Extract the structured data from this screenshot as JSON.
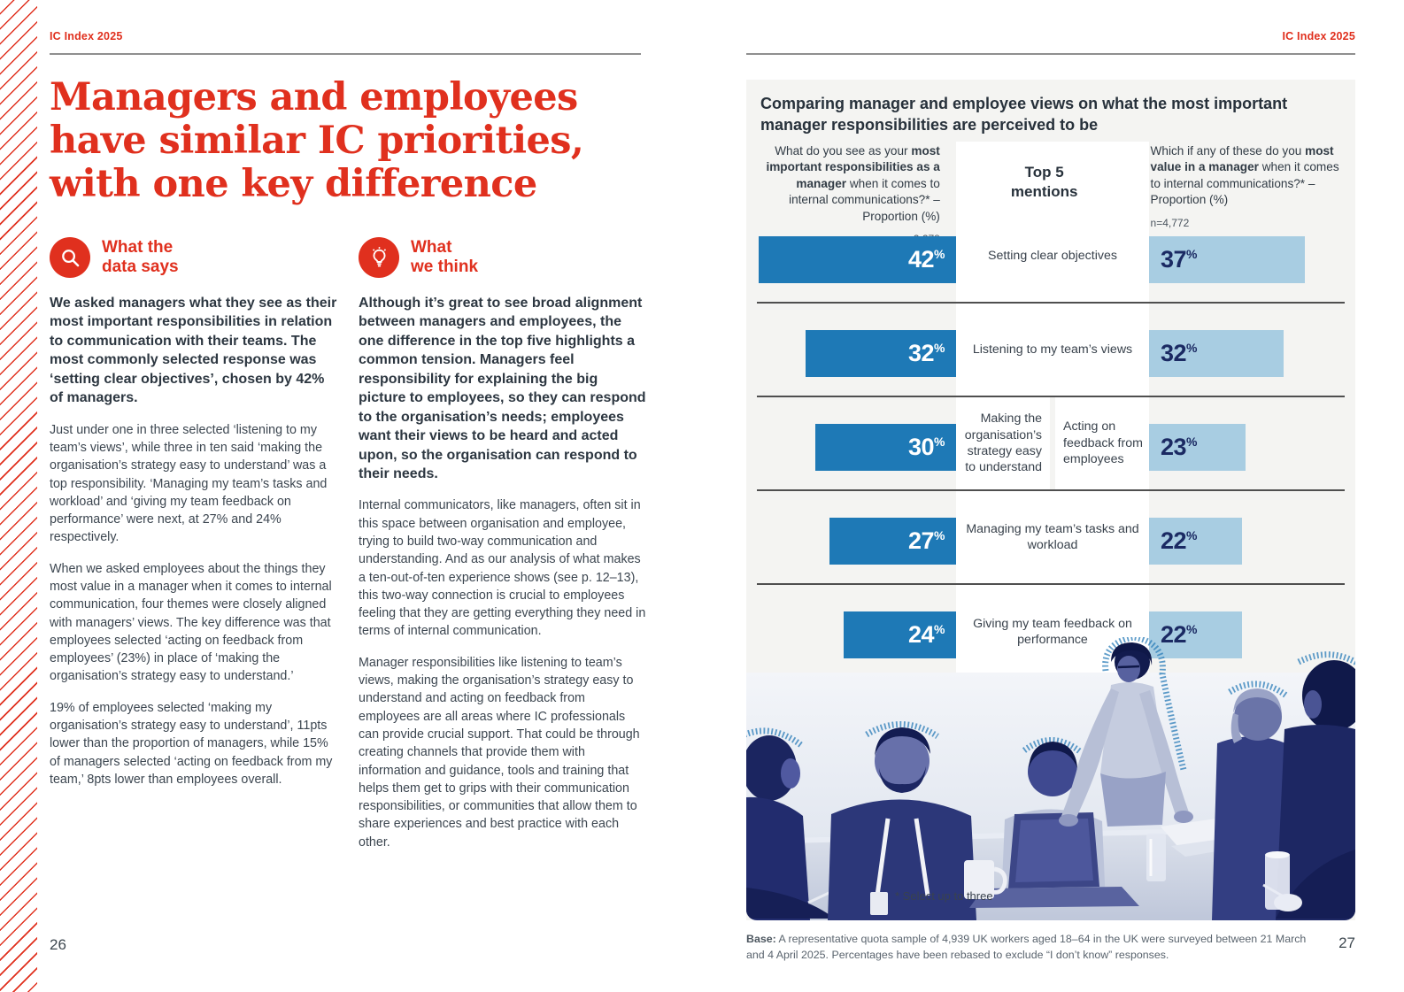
{
  "colors": {
    "accent_red": "#e0301e",
    "bar_dark_blue": "#1e79b6",
    "bar_light_blue": "#a8cde2",
    "navy_value_text": "#1b2a63",
    "panel_background": "#f4f4f2",
    "separator_gray": "#4f4f4f"
  },
  "page_left": {
    "running_header": "IC Index 2025",
    "page_number": "26",
    "title_lines": [
      "Managers and employees",
      "have similar IC priorities,",
      "with one key difference"
    ],
    "sections": [
      {
        "icon": "magnifier-icon",
        "heading_lines": [
          "What the",
          "data says"
        ],
        "lead": "We asked managers what they see as their most important responsibilities in relation to communication with their teams. The most commonly selected response was ‘setting clear objectives’, chosen by 42% of managers.",
        "paragraphs": [
          "Just under one in three selected ‘listening to my team’s views’, while three in ten said ‘making the organisation’s strategy easy to understand’ was a top responsibility. ‘Managing my team’s tasks and workload’ and ‘giving my team feedback on performance’ were next, at 27% and 24% respectively.",
          "When we asked employees about the things they most value in a manager when it comes to internal communication, four themes were closely aligned with managers’ views. The key difference was that employees selected ‘acting on feedback from employees’ (23%) in place of ‘making the organisation’s strategy easy to understand.’",
          "19% of employees selected ‘making my organisation’s strategy easy to understand’, 11pts lower than the proportion of managers, while 15% of managers selected ‘acting on feedback from my team,’ 8pts lower than employees overall."
        ]
      },
      {
        "icon": "lightbulb-icon",
        "heading_lines": [
          "What",
          "we think"
        ],
        "lead": "Although it’s great to see broad alignment between managers and employees, the one difference in the top five highlights a common tension. Managers feel responsibility for explaining the big picture to employees, so they can respond to the organisation’s needs; employees want their views to be heard and acted upon, so the organisation can respond to their needs.",
        "paragraphs": [
          "Internal communicators, like managers, often sit in this space between organisation and employee, trying to build two-way communication and understanding. And as our analysis of what makes a ten-out-of-ten experience shows (see p. 12–13), this two-way connection is crucial to employees feeling that they are getting everything they need in terms of internal communication.",
          "Manager responsibilities like listening to team’s views, making the organisation’s strategy easy to understand and acting on feedback from employees are all areas where IC professionals can provide crucial support. That could be through creating channels that provide them with information and guidance, tools and training that helps them get to grips with their communication responsibilities, or communities that allow them to share experiences and best practice with each other."
        ]
      }
    ]
  },
  "page_right": {
    "running_header": "IC Index 2025",
    "page_number": "27",
    "panel": {
      "title": "Comparing manager and employee views on what the most important manager responsibilities are perceived to be",
      "left_question_segments": [
        {
          "t": "What do you see as your ",
          "b": false
        },
        {
          "t": "most important responsibilities as a manager",
          "b": true
        },
        {
          "t": " when it comes to internal communications?* – Proportion (%)",
          "b": false
        }
      ],
      "left_n": "n=2,278",
      "center_heading_lines": [
        "Top 5",
        "mentions"
      ],
      "right_question_segments": [
        {
          "t": "Which if any of these do you ",
          "b": false
        },
        {
          "t": "most value in a manager",
          "b": true
        },
        {
          "t": " when it comes to internal communications?* – Proportion (%)",
          "b": false
        }
      ],
      "right_n": "n=4,772",
      "percent_sign": "%",
      "rows": [
        {
          "manager": 42,
          "employee": 37,
          "label": "Setting clear objectives"
        },
        {
          "manager": 32,
          "employee": 32,
          "label": "Listening to my team’s views"
        },
        {
          "manager": 30,
          "employee": 23,
          "split": true,
          "label_left": "Making the organisation’s strategy easy to understand",
          "label_right": "Acting on feedback from employees"
        },
        {
          "manager": 27,
          "employee": 22,
          "label": "Managing my team’s tasks and workload"
        },
        {
          "manager": 24,
          "employee": 22,
          "label": "Giving my team feedback on performance"
        }
      ],
      "photo_caption": "* Select up to three",
      "base_label": "Base:",
      "base_text": " A representative quota sample of 4,939 UK workers aged 18–64 in the UK were surveyed between 21 March and 4 April 2025. Percentages have been rebased to exclude “I don’t know” responses."
    }
  },
  "chart_data": {
    "type": "bar",
    "orientation": "horizontal",
    "title": "Comparing manager and employee views on what the most important manager responsibilities are perceived to be",
    "unit": "%",
    "center_column_heading": "Top 5 mentions",
    "series": [
      {
        "name": "Managers – What do you see as your most important responsibilities as a manager when it comes to internal communications? (n=2,278)",
        "categories": [
          "Setting clear objectives",
          "Listening to my team’s views",
          "Making the organisation’s strategy easy to understand",
          "Managing my team’s tasks and workload",
          "Giving my team feedback on performance"
        ],
        "values": [
          42,
          32,
          30,
          27,
          24
        ]
      },
      {
        "name": "Employees – Which if any of these do you most value in a manager when it comes to internal communications? (n=4,772)",
        "categories": [
          "Setting clear objectives",
          "Listening to my team’s views",
          "Acting on feedback from employees",
          "Managing my team’s tasks and workload",
          "Giving my team feedback on performance"
        ],
        "values": [
          37,
          32,
          23,
          22,
          22
        ]
      }
    ],
    "footnote": "* Select up to three"
  }
}
